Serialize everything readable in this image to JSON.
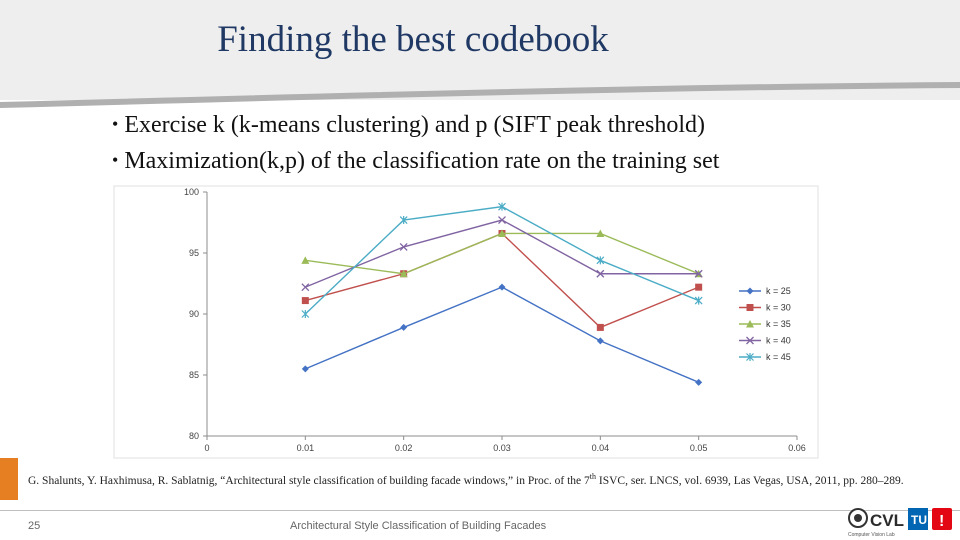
{
  "slide": {
    "title": "Finding the best codebook",
    "bullets": [
      "Exercise k (k-means clustering) and p (SIFT peak threshold)",
      "Maximization(k,p) of the classification rate on the training set"
    ],
    "citation_before_sup": "G. Shalunts, Y. Haxhimusa, R. Sablatnig, “Architectural style classification of building facade windows,” in Proc. of the 7",
    "citation_sup": "th",
    "citation_after_sup": " ISVC, ser. LNCS, vol. 6939, Las Vegas, USA, 2011, pp. 280–289.",
    "page_number": "25",
    "footer_text": "Architectural Style Classification of Building Facades",
    "logo_text": "CVL",
    "logo_tu_text": "TU",
    "logo_subtext": "Computer Vision Lab",
    "logo_exclaim": "!"
  },
  "chart_data": {
    "type": "line",
    "x": [
      0.01,
      0.02,
      0.03,
      0.04,
      0.05
    ],
    "xlim": [
      0,
      0.06
    ],
    "xticks": [
      "0",
      "0.01",
      "0.02",
      "0.03",
      "0.04",
      "0.05",
      "0.06"
    ],
    "ylim": [
      80,
      100
    ],
    "yticks": [
      "80",
      "85",
      "90",
      "95",
      "100"
    ],
    "grid": false,
    "legend": "right",
    "series": [
      {
        "name": "k = 25",
        "values": [
          85.5,
          88.9,
          92.2,
          87.8,
          84.4
        ],
        "color": "#4472c4",
        "marker": "diamond"
      },
      {
        "name": "k = 30",
        "values": [
          91.1,
          93.3,
          96.6,
          88.9,
          92.2
        ],
        "color": "#c0504d",
        "marker": "square"
      },
      {
        "name": "k = 35",
        "values": [
          94.4,
          93.3,
          96.6,
          96.6,
          93.3
        ],
        "color": "#9bbb59",
        "marker": "triangle"
      },
      {
        "name": "k = 40",
        "values": [
          92.2,
          95.5,
          97.7,
          93.3,
          93.3
        ],
        "color": "#8064a2",
        "marker": "x"
      },
      {
        "name": "k = 45",
        "values": [
          90.0,
          97.7,
          98.8,
          94.4,
          91.1
        ],
        "color": "#4bacc6",
        "marker": "star"
      }
    ]
  }
}
